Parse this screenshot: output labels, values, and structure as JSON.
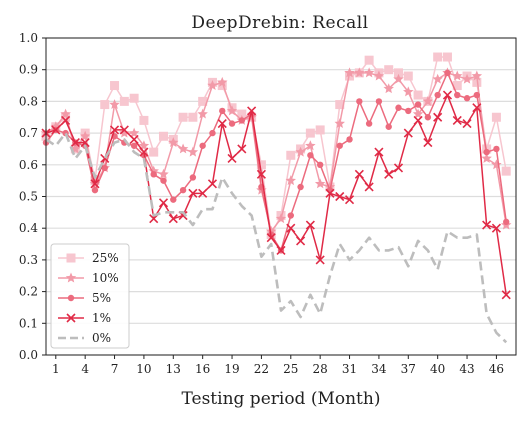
{
  "chart_data": {
    "type": "line",
    "title": "DeepDrebin: Recall",
    "xlabel": "Testing period (Month)",
    "ylabel": "",
    "xlim": [
      0,
      48
    ],
    "ylim": [
      0.0,
      1.0
    ],
    "x_ticks": [
      1,
      4,
      7,
      10,
      13,
      16,
      19,
      22,
      25,
      28,
      31,
      34,
      37,
      40,
      43,
      46
    ],
    "y_ticks": [
      "0.0",
      "0.1",
      "0.2",
      "0.3",
      "0.4",
      "0.5",
      "0.6",
      "0.7",
      "0.8",
      "0.9",
      "1.0"
    ],
    "grid": "horizontal",
    "legend_position": "bottom-left",
    "x": [
      0,
      1,
      2,
      3,
      4,
      5,
      6,
      7,
      8,
      9,
      10,
      11,
      12,
      13,
      14,
      15,
      16,
      17,
      18,
      19,
      20,
      21,
      22,
      23,
      24,
      25,
      26,
      27,
      28,
      29,
      30,
      31,
      32,
      33,
      34,
      35,
      36,
      37,
      38,
      39,
      40,
      41,
      42,
      43,
      44,
      45,
      46,
      47
    ],
    "series": [
      {
        "name": "25%",
        "color": "#f7c6cf",
        "marker": "square",
        "dashed": false,
        "values": [
          0.69,
          0.72,
          0.75,
          0.65,
          0.7,
          0.55,
          0.79,
          0.85,
          0.8,
          0.81,
          0.74,
          0.64,
          0.69,
          0.68,
          0.75,
          0.75,
          0.8,
          0.86,
          0.85,
          0.78,
          0.76,
          0.75,
          0.6,
          0.38,
          0.44,
          0.63,
          0.65,
          0.7,
          0.71,
          0.53,
          0.79,
          0.88,
          0.89,
          0.93,
          0.89,
          0.9,
          0.89,
          0.88,
          0.82,
          0.8,
          0.94,
          0.94,
          0.85,
          0.88,
          0.86,
          0.65,
          0.75,
          0.58
        ]
      },
      {
        "name": "10%",
        "color": "#f29aa8",
        "marker": "star",
        "dashed": false,
        "values": [
          0.7,
          0.72,
          0.76,
          0.65,
          0.69,
          0.54,
          0.59,
          0.79,
          0.7,
          0.7,
          0.66,
          0.58,
          0.57,
          0.67,
          0.65,
          0.64,
          0.76,
          0.85,
          0.86,
          0.77,
          0.74,
          0.75,
          0.52,
          0.39,
          0.43,
          0.55,
          0.64,
          0.66,
          0.54,
          0.53,
          0.73,
          0.89,
          0.89,
          0.89,
          0.88,
          0.84,
          0.87,
          0.83,
          0.76,
          0.8,
          0.87,
          0.89,
          0.88,
          0.87,
          0.88,
          0.62,
          0.6,
          0.41
        ]
      },
      {
        "name": "5%",
        "color": "#ec6b7e",
        "marker": "circle",
        "dashed": false,
        "values": [
          0.67,
          0.71,
          0.7,
          0.67,
          0.66,
          0.52,
          0.59,
          0.69,
          0.67,
          0.66,
          0.63,
          0.57,
          0.55,
          0.49,
          0.52,
          0.56,
          0.66,
          0.7,
          0.77,
          0.73,
          0.74,
          0.76,
          0.53,
          0.38,
          0.33,
          0.44,
          0.53,
          0.63,
          0.6,
          0.52,
          0.66,
          0.68,
          0.8,
          0.73,
          0.8,
          0.72,
          0.78,
          0.77,
          0.79,
          0.75,
          0.82,
          0.89,
          0.82,
          0.81,
          0.82,
          0.64,
          0.65,
          0.42
        ]
      },
      {
        "name": "1%",
        "color": "#e02a46",
        "marker": "x",
        "dashed": false,
        "values": [
          0.7,
          0.71,
          0.74,
          0.67,
          0.67,
          0.54,
          0.62,
          0.71,
          0.71,
          0.68,
          0.64,
          0.43,
          0.48,
          0.43,
          0.44,
          0.51,
          0.51,
          0.54,
          0.73,
          0.62,
          0.65,
          0.77,
          0.57,
          0.37,
          0.33,
          0.4,
          0.36,
          0.41,
          0.3,
          0.51,
          0.5,
          0.49,
          0.57,
          0.53,
          0.64,
          0.57,
          0.59,
          0.7,
          0.74,
          0.67,
          0.75,
          0.82,
          0.74,
          0.73,
          0.78,
          0.41,
          0.4,
          0.19
        ]
      },
      {
        "name": "0%",
        "color": "#bdbdbd",
        "marker": "none",
        "dashed": true,
        "values": [
          0.68,
          0.66,
          0.7,
          0.62,
          0.66,
          0.56,
          0.62,
          0.67,
          0.68,
          0.64,
          0.62,
          0.44,
          0.45,
          0.45,
          0.45,
          0.41,
          0.46,
          0.46,
          0.56,
          0.51,
          0.47,
          0.44,
          0.31,
          0.35,
          0.14,
          0.17,
          0.12,
          0.19,
          0.13,
          0.25,
          0.35,
          0.3,
          0.33,
          0.37,
          0.33,
          0.33,
          0.34,
          0.28,
          0.36,
          0.33,
          0.27,
          0.39,
          0.37,
          0.37,
          0.38,
          0.13,
          0.07,
          0.04
        ]
      }
    ]
  }
}
